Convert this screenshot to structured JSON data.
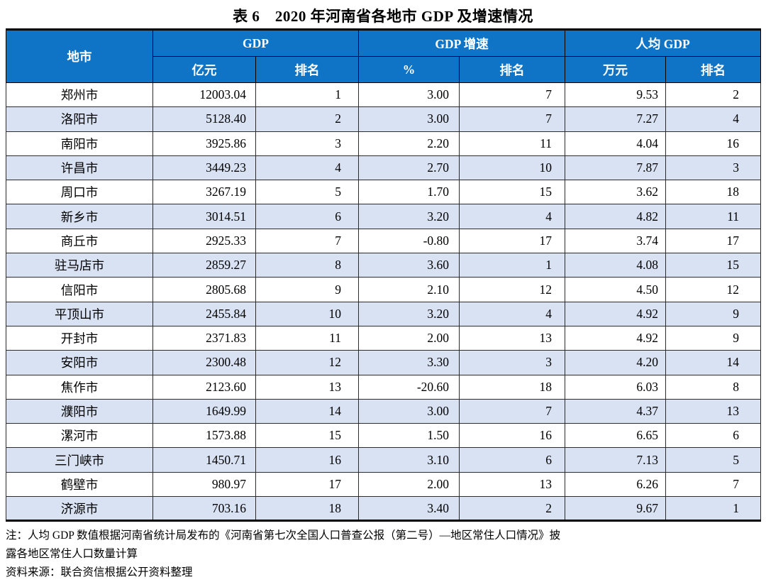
{
  "title": "表 6　2020 年河南省各地市 GDP 及增速情况",
  "colors": {
    "header_bg": "#0f74c6",
    "alt_row_bg": "#d9e2f3"
  },
  "table": {
    "col_city": "地市",
    "groups": [
      {
        "label": "GDP",
        "sub": [
          "亿元",
          "排名"
        ]
      },
      {
        "label": "GDP 增速",
        "sub": [
          "%",
          "排名"
        ]
      },
      {
        "label": "人均 GDP",
        "sub": [
          "万元",
          "排名"
        ]
      }
    ],
    "rows": [
      {
        "city": "郑州市",
        "gdp": "12003.04",
        "gdp_rank": "1",
        "growth": "3.00",
        "growth_rank": "7",
        "per_capita": "9.53",
        "per_capita_rank": "2"
      },
      {
        "city": "洛阳市",
        "gdp": "5128.40",
        "gdp_rank": "2",
        "growth": "3.00",
        "growth_rank": "7",
        "per_capita": "7.27",
        "per_capita_rank": "4"
      },
      {
        "city": "南阳市",
        "gdp": "3925.86",
        "gdp_rank": "3",
        "growth": "2.20",
        "growth_rank": "11",
        "per_capita": "4.04",
        "per_capita_rank": "16"
      },
      {
        "city": "许昌市",
        "gdp": "3449.23",
        "gdp_rank": "4",
        "growth": "2.70",
        "growth_rank": "10",
        "per_capita": "7.87",
        "per_capita_rank": "3"
      },
      {
        "city": "周口市",
        "gdp": "3267.19",
        "gdp_rank": "5",
        "growth": "1.70",
        "growth_rank": "15",
        "per_capita": "3.62",
        "per_capita_rank": "18"
      },
      {
        "city": "新乡市",
        "gdp": "3014.51",
        "gdp_rank": "6",
        "growth": "3.20",
        "growth_rank": "4",
        "per_capita": "4.82",
        "per_capita_rank": "11"
      },
      {
        "city": "商丘市",
        "gdp": "2925.33",
        "gdp_rank": "7",
        "growth": "-0.80",
        "growth_rank": "17",
        "per_capita": "3.74",
        "per_capita_rank": "17"
      },
      {
        "city": "驻马店市",
        "gdp": "2859.27",
        "gdp_rank": "8",
        "growth": "3.60",
        "growth_rank": "1",
        "per_capita": "4.08",
        "per_capita_rank": "15"
      },
      {
        "city": "信阳市",
        "gdp": "2805.68",
        "gdp_rank": "9",
        "growth": "2.10",
        "growth_rank": "12",
        "per_capita": "4.50",
        "per_capita_rank": "12"
      },
      {
        "city": "平顶山市",
        "gdp": "2455.84",
        "gdp_rank": "10",
        "growth": "3.20",
        "growth_rank": "4",
        "per_capita": "4.92",
        "per_capita_rank": "9"
      },
      {
        "city": "开封市",
        "gdp": "2371.83",
        "gdp_rank": "11",
        "growth": "2.00",
        "growth_rank": "13",
        "per_capita": "4.92",
        "per_capita_rank": "9"
      },
      {
        "city": "安阳市",
        "gdp": "2300.48",
        "gdp_rank": "12",
        "growth": "3.30",
        "growth_rank": "3",
        "per_capita": "4.20",
        "per_capita_rank": "14"
      },
      {
        "city": "焦作市",
        "gdp": "2123.60",
        "gdp_rank": "13",
        "growth": "-20.60",
        "growth_rank": "18",
        "per_capita": "6.03",
        "per_capita_rank": "8"
      },
      {
        "city": "濮阳市",
        "gdp": "1649.99",
        "gdp_rank": "14",
        "growth": "3.00",
        "growth_rank": "7",
        "per_capita": "4.37",
        "per_capita_rank": "13"
      },
      {
        "city": "漯河市",
        "gdp": "1573.88",
        "gdp_rank": "15",
        "growth": "1.50",
        "growth_rank": "16",
        "per_capita": "6.65",
        "per_capita_rank": "6"
      },
      {
        "city": "三门峡市",
        "gdp": "1450.71",
        "gdp_rank": "16",
        "growth": "3.10",
        "growth_rank": "6",
        "per_capita": "7.13",
        "per_capita_rank": "5"
      },
      {
        "city": "鹤壁市",
        "gdp": "980.97",
        "gdp_rank": "17",
        "growth": "2.00",
        "growth_rank": "13",
        "per_capita": "6.26",
        "per_capita_rank": "7"
      },
      {
        "city": "济源市",
        "gdp": "703.16",
        "gdp_rank": "18",
        "growth": "3.40",
        "growth_rank": "2",
        "per_capita": "9.67",
        "per_capita_rank": "1"
      }
    ]
  },
  "notes": {
    "line1": "注：人均 GDP 数值根据河南省统计局发布的《河南省第七次全国人口普查公报（第二号）—地区常住人口情况》披",
    "line2": "露各地区常住人口数量计算",
    "source": "资料来源：联合资信根据公开资料整理"
  }
}
